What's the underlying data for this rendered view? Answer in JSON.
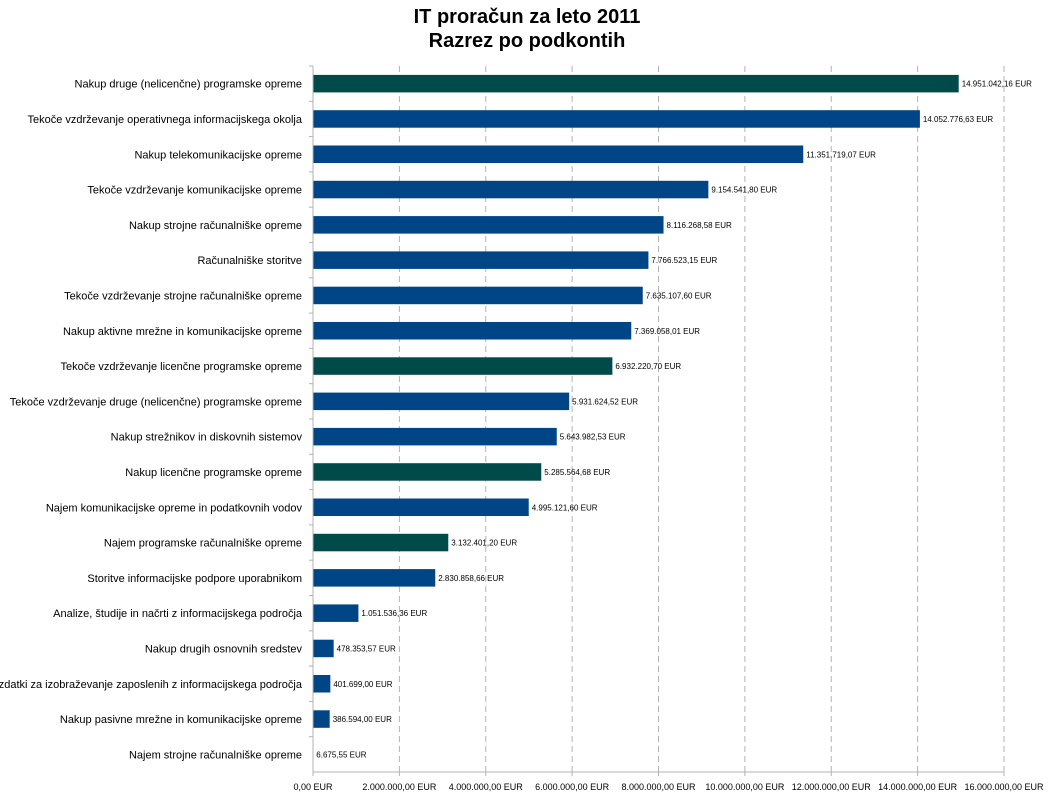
{
  "chart_data": {
    "type": "bar",
    "orientation": "horizontal",
    "title": "IT proračun za leto 2011",
    "subtitle": "Razrez po podkontih",
    "xlim": [
      0,
      16000000
    ],
    "grid": true,
    "colors": {
      "default": "#004586",
      "highlight": "#004a4a"
    },
    "x_ticks": [
      {
        "value": 0,
        "label": "0,00 EUR"
      },
      {
        "value": 2000000,
        "label": "2.000.000,00 EUR"
      },
      {
        "value": 4000000,
        "label": "4.000.000,00 EUR"
      },
      {
        "value": 6000000,
        "label": "6.000.000,00 EUR"
      },
      {
        "value": 8000000,
        "label": "8.000.000,00 EUR"
      },
      {
        "value": 10000000,
        "label": "10.000.000,00 EUR"
      },
      {
        "value": 12000000,
        "label": "12.000.000,00 EUR"
      },
      {
        "value": 14000000,
        "label": "14.000.000,00 EUR"
      },
      {
        "value": 16000000,
        "label": "16.000.000,00 EUR"
      }
    ],
    "items": [
      {
        "category": "Nakup druge (nelicenčne) programske opreme",
        "value": 14951042.16,
        "label": "14.951.042,16 EUR",
        "highlight": true
      },
      {
        "category": "Tekoče vzdrževanje operativnega informacijskega okolja",
        "value": 14052776.63,
        "label": "14.052.776,63 EUR",
        "highlight": false
      },
      {
        "category": "Nakup telekomunikacijske opreme",
        "value": 11351719.07,
        "label": "11.351.719,07 EUR",
        "highlight": false
      },
      {
        "category": "Tekoče vzdrževanje komunikacijske opreme",
        "value": 9154541.8,
        "label": "9.154.541,80 EUR",
        "highlight": false
      },
      {
        "category": "Nakup strojne računalniške opreme",
        "value": 8116268.58,
        "label": "8.116.268,58 EUR",
        "highlight": false
      },
      {
        "category": "Računalniške storitve",
        "value": 7766523.15,
        "label": "7.766.523,15 EUR",
        "highlight": false
      },
      {
        "category": "Tekoče vzdrževanje strojne računalniške opreme",
        "value": 7635107.6,
        "label": "7.635.107,60 EUR",
        "highlight": false
      },
      {
        "category": "Nakup aktivne mrežne in komunikacijske opreme",
        "value": 7369058.01,
        "label": "7.369.058,01 EUR",
        "highlight": false
      },
      {
        "category": "Tekoče vzdrževanje licenčne programske opreme",
        "value": 6932220.7,
        "label": "6.932.220,70 EUR",
        "highlight": true
      },
      {
        "category": "Tekoče vzdrževanje druge (nelicenčne) programske opreme",
        "value": 5931624.52,
        "label": "5.931.624,52 EUR",
        "highlight": false
      },
      {
        "category": "Nakup strežnikov in diskovnih sistemov",
        "value": 5643982.53,
        "label": "5.643.982,53 EUR",
        "highlight": false
      },
      {
        "category": "Nakup licenčne programske opreme",
        "value": 5285564.68,
        "label": "5.285.564,68 EUR",
        "highlight": true
      },
      {
        "category": "Najem komunikacijske opreme in podatkovnih vodov",
        "value": 4995121.6,
        "label": "4.995.121,60 EUR",
        "highlight": false
      },
      {
        "category": "Najem programske računalniške opreme",
        "value": 3132401.2,
        "label": "3.132.401,20 EUR",
        "highlight": true
      },
      {
        "category": "Storitve informacijske podpore uporabnikom",
        "value": 2830858.66,
        "label": "2.830.858,66 EUR",
        "highlight": false
      },
      {
        "category": "Analize, študije in načrti z informacijskega področja",
        "value": 1051536.36,
        "label": "1.051.536,36 EUR",
        "highlight": false
      },
      {
        "category": "Nakup drugih osnovnih sredstev",
        "value": 478353.57,
        "label": "478.353,57 EUR",
        "highlight": false
      },
      {
        "category": "Izdatki za izobraževanje zaposlenih z informacijskega področja",
        "value": 401699.0,
        "label": "401.699,00 EUR",
        "highlight": false
      },
      {
        "category": "Nakup pasivne mrežne in komunikacijske opreme",
        "value": 386594.0,
        "label": "386.594,00 EUR",
        "highlight": false
      },
      {
        "category": "Najem strojne računalniške opreme",
        "value": 6675.55,
        "label": "6.675,55 EUR",
        "highlight": false
      }
    ]
  }
}
